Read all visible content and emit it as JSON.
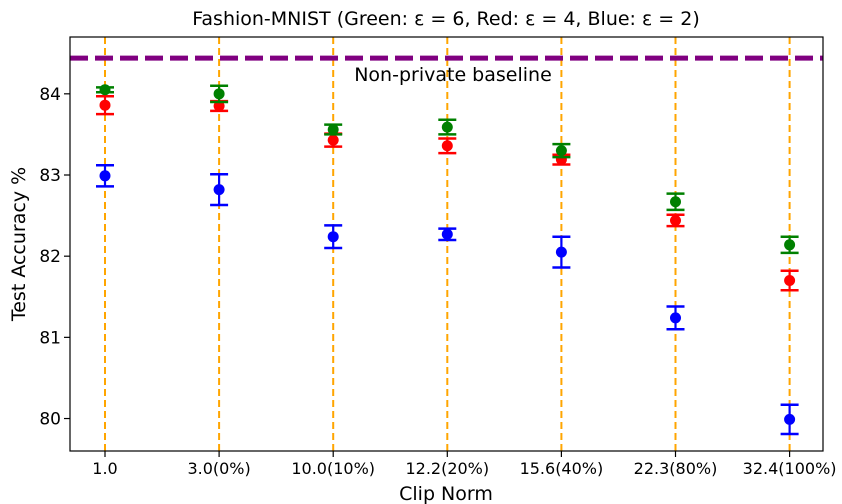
{
  "chart_data": {
    "type": "scatter",
    "title": "Fashion-MNIST (Green: ε = 6, Red: ε = 4, Blue: ε = 2)",
    "xlabel": "Clip Norm",
    "ylabel": "Test Accuracy %",
    "categories": [
      "1.0",
      "3.0(0%)",
      "10.0(10%)",
      "12.2(20%)",
      "15.6(40%)",
      "22.3(80%)",
      "32.4(100%)"
    ],
    "ylim": [
      79.6,
      84.7
    ],
    "yticks": [
      80,
      81,
      82,
      83,
      84
    ],
    "grid": false,
    "baseline": {
      "value": 84.44,
      "label": "Non-private baseline",
      "color": "#800080"
    },
    "vline_color": "#ffa500",
    "series": [
      {
        "color": "#0000ff",
        "values": [
          82.99,
          82.82,
          82.24,
          82.27,
          82.05,
          81.24,
          79.99
        ],
        "errors": [
          0.13,
          0.19,
          0.14,
          0.07,
          0.19,
          0.14,
          0.18
        ]
      },
      {
        "color": "#ff0000",
        "values": [
          83.86,
          83.85,
          83.43,
          83.36,
          83.19,
          82.44,
          81.7
        ],
        "errors": [
          0.11,
          0.06,
          0.08,
          0.09,
          0.06,
          0.07,
          0.12
        ]
      },
      {
        "color": "#008000",
        "values": [
          84.05,
          84.0,
          83.56,
          83.59,
          83.3,
          82.67,
          82.14
        ],
        "errors": [
          0.03,
          0.1,
          0.06,
          0.09,
          0.08,
          0.1,
          0.1
        ]
      }
    ]
  }
}
